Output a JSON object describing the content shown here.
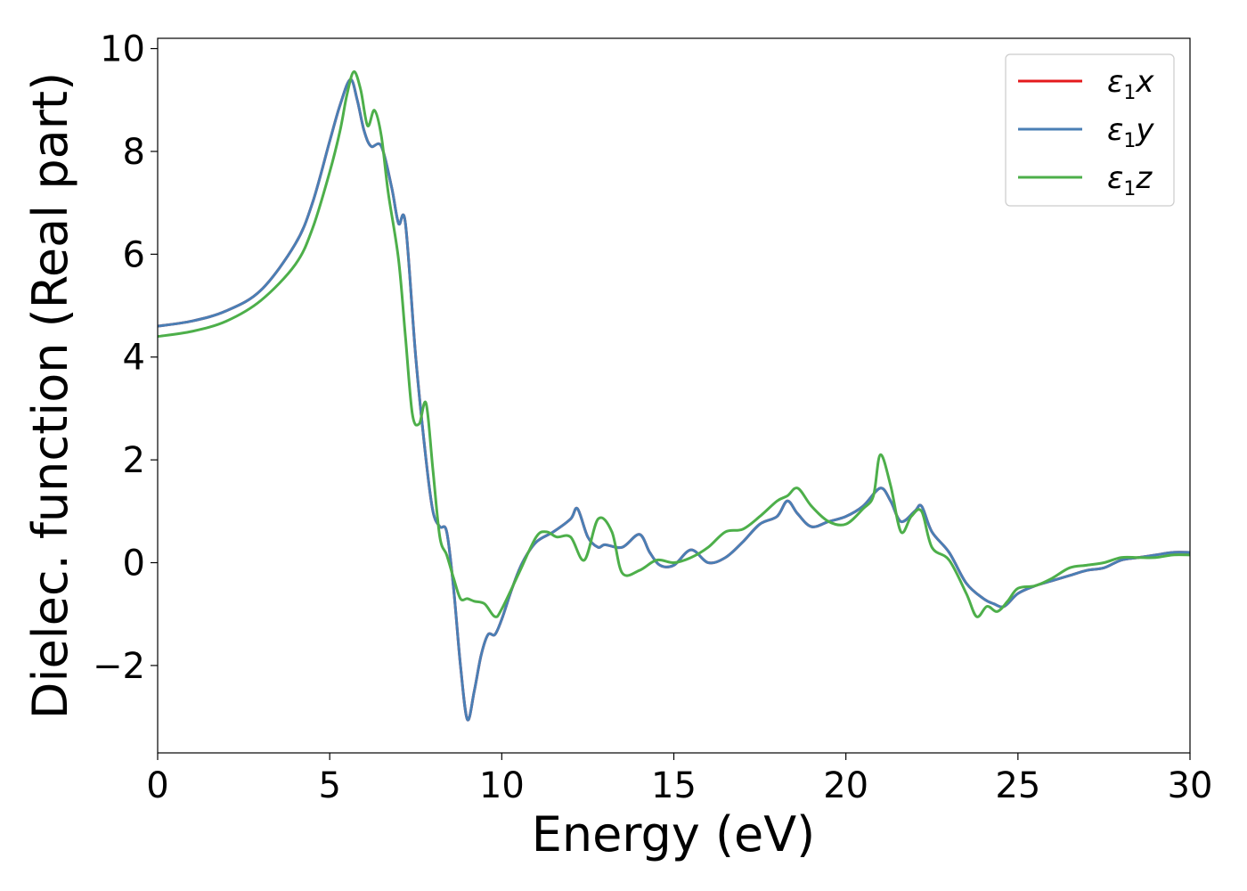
{
  "chart_data": {
    "type": "line",
    "xlabel": "Energy (eV)",
    "ylabel": "Dielec. function (Real part)",
    "xlim": [
      0,
      30
    ],
    "ylim": [
      -3.7,
      10.2
    ],
    "xticks": [
      0,
      5,
      10,
      15,
      20,
      25,
      30
    ],
    "yticks": [
      -2,
      0,
      2,
      4,
      6,
      8,
      10
    ],
    "xtick_labels": [
      "0",
      "5",
      "10",
      "15",
      "20",
      "25",
      "30"
    ],
    "ytick_labels": [
      "−2",
      "0",
      "2",
      "4",
      "6",
      "8",
      "10"
    ],
    "grid": false,
    "legend_position": "top-right",
    "series": [
      {
        "name": "ε1x",
        "label_base": "ε",
        "label_sub": "1",
        "label_suffix": "x",
        "color": "#e41a1c",
        "x": [
          0,
          1,
          2,
          3,
          4,
          4.5,
          5,
          5.3,
          5.6,
          5.8,
          6.0,
          6.2,
          6.5,
          6.8,
          7.0,
          7.2,
          7.5,
          7.8,
          8.0,
          8.2,
          8.4,
          8.6,
          8.8,
          9.0,
          9.2,
          9.4,
          9.6,
          9.8,
          10.0,
          10.3,
          10.6,
          11.0,
          11.5,
          12.0,
          12.2,
          12.5,
          12.8,
          13.0,
          13.5,
          14.0,
          14.3,
          14.6,
          15.0,
          15.5,
          16.0,
          16.5,
          17.0,
          17.5,
          18.0,
          18.3,
          18.6,
          19.0,
          19.5,
          20.0,
          20.5,
          21.0,
          21.3,
          21.6,
          22.0,
          22.2,
          22.5,
          23.0,
          23.5,
          24.0,
          24.3,
          24.6,
          25.0,
          25.5,
          26.0,
          26.5,
          27.0,
          27.5,
          28.0,
          28.5,
          29.0,
          29.5,
          30.0
        ],
        "y": [
          4.6,
          4.7,
          4.9,
          5.3,
          6.2,
          7.0,
          8.2,
          8.9,
          9.4,
          9.0,
          8.4,
          8.1,
          8.1,
          7.3,
          6.6,
          6.6,
          4.0,
          2.0,
          1.0,
          0.7,
          0.6,
          -0.5,
          -2.0,
          -3.05,
          -2.5,
          -1.8,
          -1.4,
          -1.4,
          -1.1,
          -0.5,
          0.0,
          0.4,
          0.6,
          0.85,
          1.05,
          0.5,
          0.3,
          0.35,
          0.3,
          0.55,
          0.2,
          -0.05,
          -0.05,
          0.25,
          0.0,
          0.1,
          0.4,
          0.75,
          0.9,
          1.2,
          0.95,
          0.7,
          0.8,
          0.9,
          1.1,
          1.45,
          1.2,
          0.8,
          1.0,
          1.1,
          0.6,
          0.2,
          -0.4,
          -0.7,
          -0.8,
          -0.85,
          -0.6,
          -0.45,
          -0.35,
          -0.25,
          -0.15,
          -0.1,
          0.05,
          0.1,
          0.15,
          0.2,
          0.2
        ]
      },
      {
        "name": "ε1y",
        "label_base": "ε",
        "label_sub": "1",
        "label_suffix": "y",
        "color": "#4a7fb5",
        "x": [
          0,
          1,
          2,
          3,
          4,
          4.5,
          5,
          5.3,
          5.6,
          5.8,
          6.0,
          6.2,
          6.5,
          6.8,
          7.0,
          7.2,
          7.5,
          7.8,
          8.0,
          8.2,
          8.4,
          8.6,
          8.8,
          9.0,
          9.2,
          9.4,
          9.6,
          9.8,
          10.0,
          10.3,
          10.6,
          11.0,
          11.5,
          12.0,
          12.2,
          12.5,
          12.8,
          13.0,
          13.5,
          14.0,
          14.3,
          14.6,
          15.0,
          15.5,
          16.0,
          16.5,
          17.0,
          17.5,
          18.0,
          18.3,
          18.6,
          19.0,
          19.5,
          20.0,
          20.5,
          21.0,
          21.3,
          21.6,
          22.0,
          22.2,
          22.5,
          23.0,
          23.5,
          24.0,
          24.3,
          24.6,
          25.0,
          25.5,
          26.0,
          26.5,
          27.0,
          27.5,
          28.0,
          28.5,
          29.0,
          29.5,
          30.0
        ],
        "y": [
          4.6,
          4.7,
          4.9,
          5.3,
          6.2,
          7.0,
          8.2,
          8.9,
          9.4,
          9.0,
          8.4,
          8.1,
          8.1,
          7.3,
          6.6,
          6.6,
          4.0,
          2.0,
          1.0,
          0.7,
          0.6,
          -0.5,
          -2.0,
          -3.05,
          -2.5,
          -1.8,
          -1.4,
          -1.4,
          -1.1,
          -0.5,
          0.0,
          0.4,
          0.6,
          0.85,
          1.05,
          0.5,
          0.3,
          0.35,
          0.3,
          0.55,
          0.2,
          -0.05,
          -0.05,
          0.25,
          0.0,
          0.1,
          0.4,
          0.75,
          0.9,
          1.2,
          0.95,
          0.7,
          0.8,
          0.9,
          1.1,
          1.45,
          1.2,
          0.8,
          1.0,
          1.1,
          0.6,
          0.2,
          -0.4,
          -0.7,
          -0.8,
          -0.85,
          -0.6,
          -0.45,
          -0.35,
          -0.25,
          -0.15,
          -0.1,
          0.05,
          0.1,
          0.15,
          0.2,
          0.2
        ]
      },
      {
        "name": "ε1z",
        "label_base": "ε",
        "label_sub": "1",
        "label_suffix": "z",
        "color": "#4daf4a",
        "x": [
          0,
          1,
          2,
          3,
          4,
          4.5,
          5,
          5.3,
          5.5,
          5.7,
          5.9,
          6.1,
          6.3,
          6.5,
          6.7,
          7.0,
          7.2,
          7.4,
          7.6,
          7.8,
          8.0,
          8.2,
          8.4,
          8.6,
          8.8,
          9.0,
          9.2,
          9.5,
          9.8,
          10.0,
          10.5,
          11.0,
          11.3,
          11.6,
          12.0,
          12.4,
          12.8,
          13.2,
          13.5,
          14.0,
          14.5,
          15.0,
          15.5,
          16.0,
          16.5,
          17.0,
          17.5,
          18.0,
          18.3,
          18.6,
          19.0,
          19.5,
          20.0,
          20.5,
          20.8,
          21.0,
          21.3,
          21.6,
          21.9,
          22.2,
          22.5,
          23.0,
          23.5,
          23.8,
          24.1,
          24.4,
          24.7,
          25.0,
          25.5,
          26.0,
          26.5,
          27.0,
          27.5,
          28.0,
          28.5,
          29.0,
          29.5,
          30.0
        ],
        "y": [
          4.4,
          4.5,
          4.7,
          5.1,
          5.8,
          6.5,
          7.6,
          8.4,
          9.1,
          9.55,
          9.2,
          8.5,
          8.8,
          8.3,
          7.2,
          5.9,
          4.4,
          2.9,
          2.7,
          3.1,
          1.8,
          0.5,
          0.15,
          -0.3,
          -0.7,
          -0.7,
          -0.75,
          -0.8,
          -1.05,
          -0.9,
          -0.2,
          0.5,
          0.6,
          0.5,
          0.5,
          0.05,
          0.85,
          0.6,
          -0.2,
          -0.15,
          0.05,
          0.0,
          0.1,
          0.3,
          0.6,
          0.65,
          0.9,
          1.2,
          1.3,
          1.45,
          1.1,
          0.8,
          0.75,
          1.05,
          1.3,
          2.1,
          1.5,
          0.6,
          0.9,
          1.0,
          0.3,
          0.05,
          -0.6,
          -1.05,
          -0.85,
          -0.95,
          -0.75,
          -0.5,
          -0.45,
          -0.3,
          -0.1,
          -0.05,
          0.0,
          0.1,
          0.1,
          0.1,
          0.15,
          0.15
        ]
      }
    ]
  }
}
